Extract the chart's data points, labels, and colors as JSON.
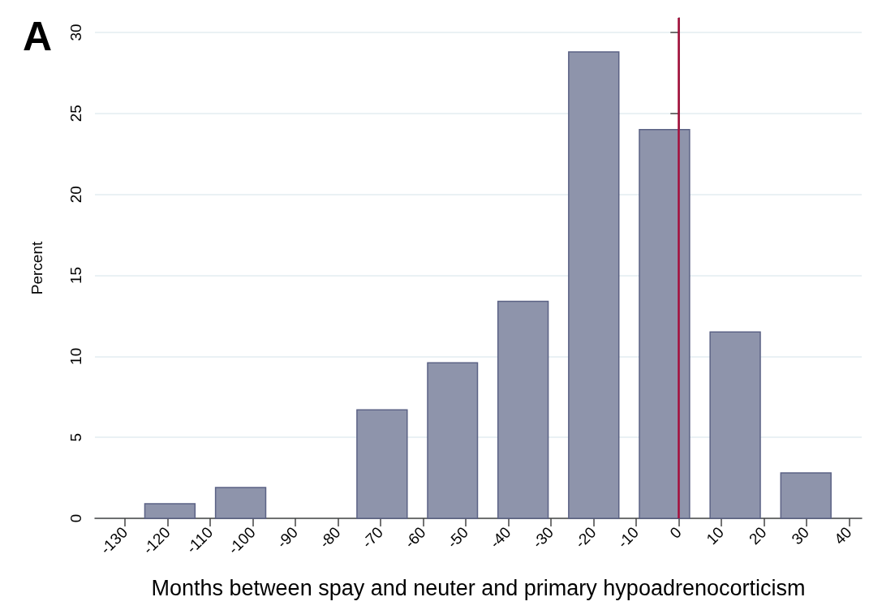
{
  "chart_data": {
    "type": "histogram",
    "bins": [
      -127.7,
      -111.1,
      -94.5,
      -77.9,
      -61.3,
      -44.8,
      -28.2,
      -11.6,
      5.0,
      21.6,
      38.2
    ],
    "values": [
      0.9,
      1.9,
      0,
      6.7,
      9.6,
      13.4,
      28.8,
      24,
      11.5,
      2.8
    ],
    "color": "#8e94ab",
    "xlabel": "Months between spay and neuter and primary hypoadrenocorticism",
    "ylabel": "Percent",
    "annotations": [
      "A"
    ],
    "xlim": [
      -137,
      43
    ],
    "xticks": [
      -130,
      -120,
      -110,
      -100,
      -90,
      -80,
      -70,
      -60,
      -50,
      -40,
      -30,
      -20,
      -10,
      0,
      10,
      20,
      30,
      40
    ],
    "ylim": [
      0,
      30.9
    ],
    "yticks": [
      0,
      5,
      10,
      15,
      20,
      25,
      30
    ],
    "ref_lines": [
      {
        "axis": "x",
        "value": 0,
        "color": "#a50d3a"
      }
    ],
    "grid": "y",
    "legend": false
  }
}
